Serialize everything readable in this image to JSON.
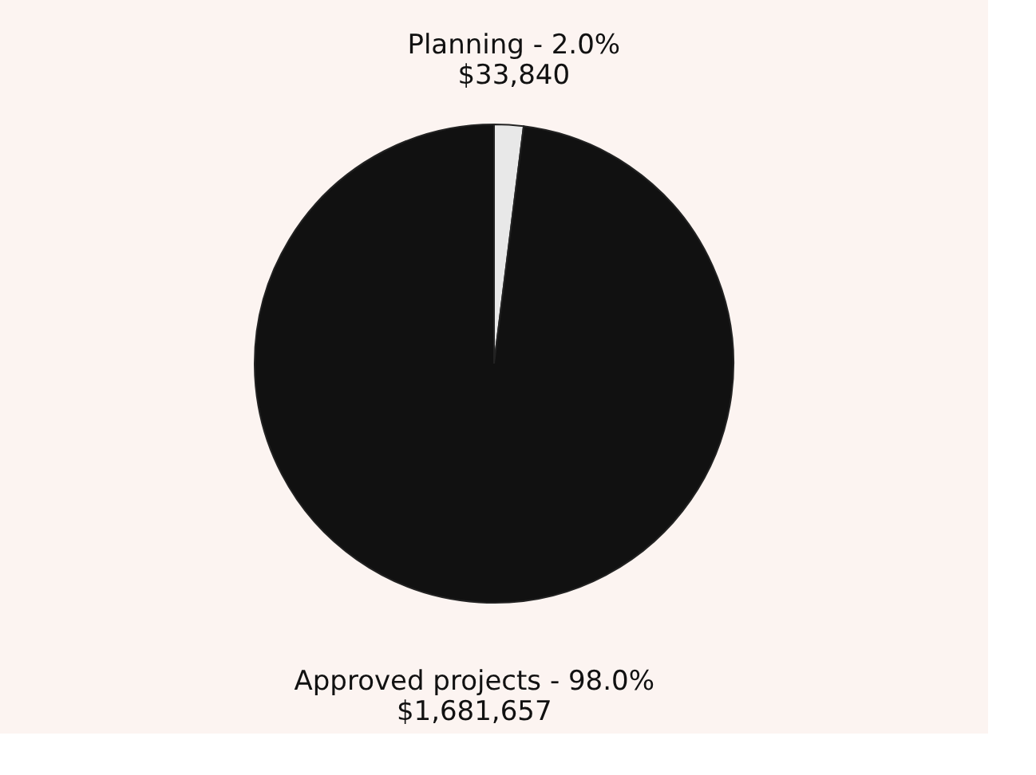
{
  "chart_data": {
    "type": "pie",
    "categories": [
      "Planning - 2.0%",
      "Approved projects - 98.0%"
    ],
    "values": [
      33840,
      1681657
    ],
    "value_labels": [
      "$33,840",
      "$1,681,657"
    ],
    "colors": [
      "#e8e8e8",
      "#111111"
    ],
    "legend": false
  }
}
